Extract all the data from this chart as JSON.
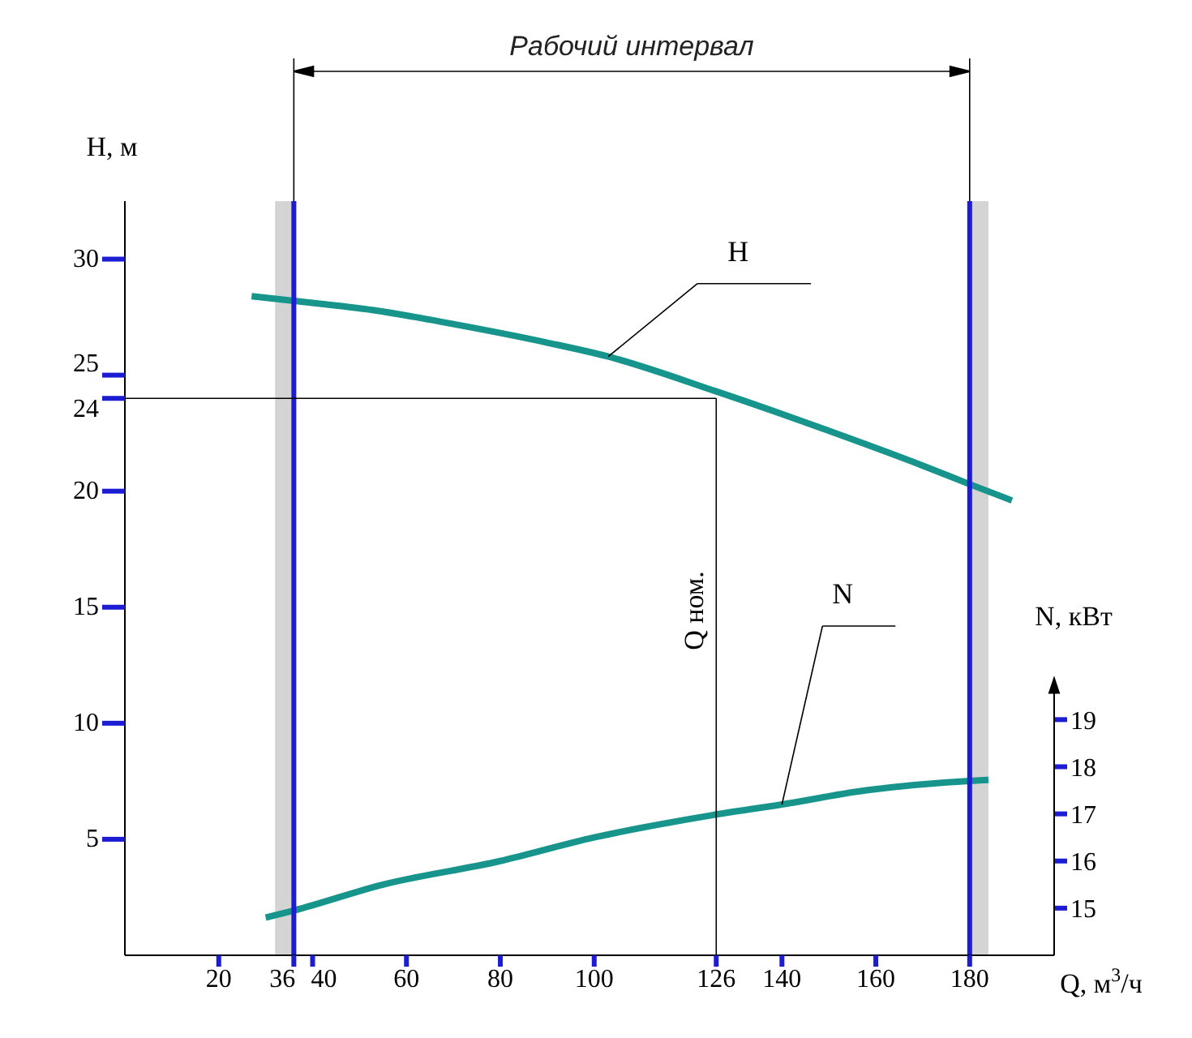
{
  "chart_data": {
    "type": "line",
    "title": "Рабочий интервал",
    "xlabel": "Q, м$^{3}$/ч",
    "ylabel": "H, м",
    "y2label": "N, кВт",
    "series": [
      {
        "name": "H",
        "color": "#17958c",
        "x": [
          27,
          36,
          53,
          70,
          90,
          103,
          126,
          150,
          170,
          180,
          189
        ],
        "values": [
          28.4,
          28.2,
          27.8,
          27.2,
          26.4,
          25.8,
          24.3,
          22.6,
          21.1,
          20.3,
          19.6
        ]
      },
      {
        "name": "N",
        "color": "#17958c",
        "axis": "y2",
        "x": [
          30,
          36,
          55,
          80,
          100,
          125,
          140,
          158,
          180,
          184
        ],
        "values": [
          14.8,
          14.95,
          15.5,
          16.0,
          16.5,
          16.97,
          17.2,
          17.5,
          17.7,
          17.72
        ]
      }
    ],
    "xlim": [
      0,
      198
    ],
    "xticks": [
      20,
      36,
      40,
      60,
      80,
      100,
      126,
      140,
      160,
      180
    ],
    "ylim": [
      0,
      32.5
    ],
    "yticks": [
      5,
      10,
      15,
      20,
      24,
      25,
      30
    ],
    "y2lim": [
      14,
      30
    ],
    "y2ticks": [
      15,
      16,
      17,
      18,
      19
    ],
    "ref_lines": [
      {
        "axis": "x",
        "value": 36,
        "color": "#1c1cd4"
      },
      {
        "axis": "x",
        "value": 180,
        "color": "#1c1cd4"
      },
      {
        "axis": "x",
        "value": 126,
        "label": "Q ном.",
        "color": "#000000"
      },
      {
        "axis": "y",
        "value": 24,
        "color": "#000000"
      }
    ],
    "bands": [
      {
        "axis": "x",
        "from": 32,
        "to": 36,
        "color": "#b8b8b8"
      },
      {
        "axis": "x",
        "from": 180,
        "to": 184,
        "color": "#b8b8b8"
      }
    ],
    "marker": "none",
    "line_style": "solid"
  }
}
